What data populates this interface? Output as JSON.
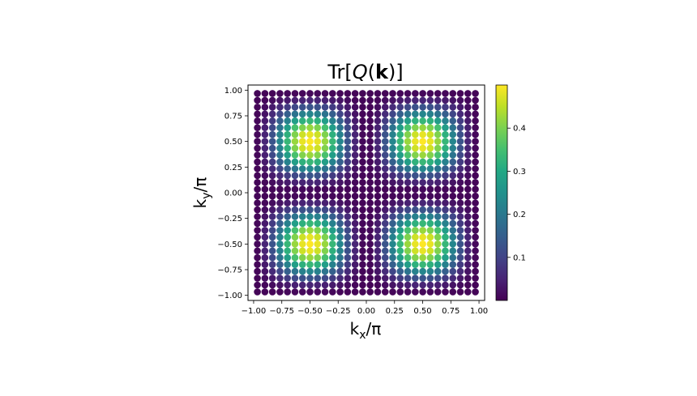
{
  "chart_data": {
    "type": "scatter",
    "title_prefix": "Tr[",
    "title_italic": "Q",
    "title_paren_open": "(",
    "title_bold": "k",
    "title_suffix": ")]",
    "xlabel_main": "k",
    "xlabel_sub": "x",
    "xlabel_tail": "/π",
    "ylabel_main": "k",
    "ylabel_sub": "y",
    "ylabel_tail": "/π",
    "xlim": [
      -1.05,
      1.05
    ],
    "ylim": [
      -1.05,
      1.05
    ],
    "x_ticks": [
      -1.0,
      -0.75,
      -0.5,
      -0.25,
      0.0,
      0.25,
      0.5,
      0.75,
      1.0
    ],
    "x_tick_labels": [
      "−1.00",
      "−0.75",
      "−0.50",
      "−0.25",
      "0.00",
      "0.25",
      "0.50",
      "0.75",
      "1.00"
    ],
    "y_ticks": [
      1.0,
      0.75,
      0.5,
      0.25,
      0.0,
      -0.25,
      -0.5,
      -0.75,
      -1.0
    ],
    "y_tick_labels": [
      "1.00",
      "0.75",
      "0.50",
      "0.25",
      "0.00",
      "−0.25",
      "−0.50",
      "−0.75",
      "−1.00"
    ],
    "grid_n": 30,
    "grid_min": -0.9667,
    "grid_step": 0.0667,
    "value_formula": "0.5*sin(pi*x)^2*sin(pi*y)^2 approx; Tr[Q(k)] quantum metric trace",
    "colormap": "viridis",
    "colorbar_range": [
      0.0,
      0.5
    ],
    "colorbar_ticks": [
      0.1,
      0.2,
      0.3,
      0.4
    ],
    "colorbar_tick_labels": [
      "0.1",
      "0.2",
      "0.3",
      "0.4"
    ],
    "grid": false,
    "legend": "none"
  }
}
